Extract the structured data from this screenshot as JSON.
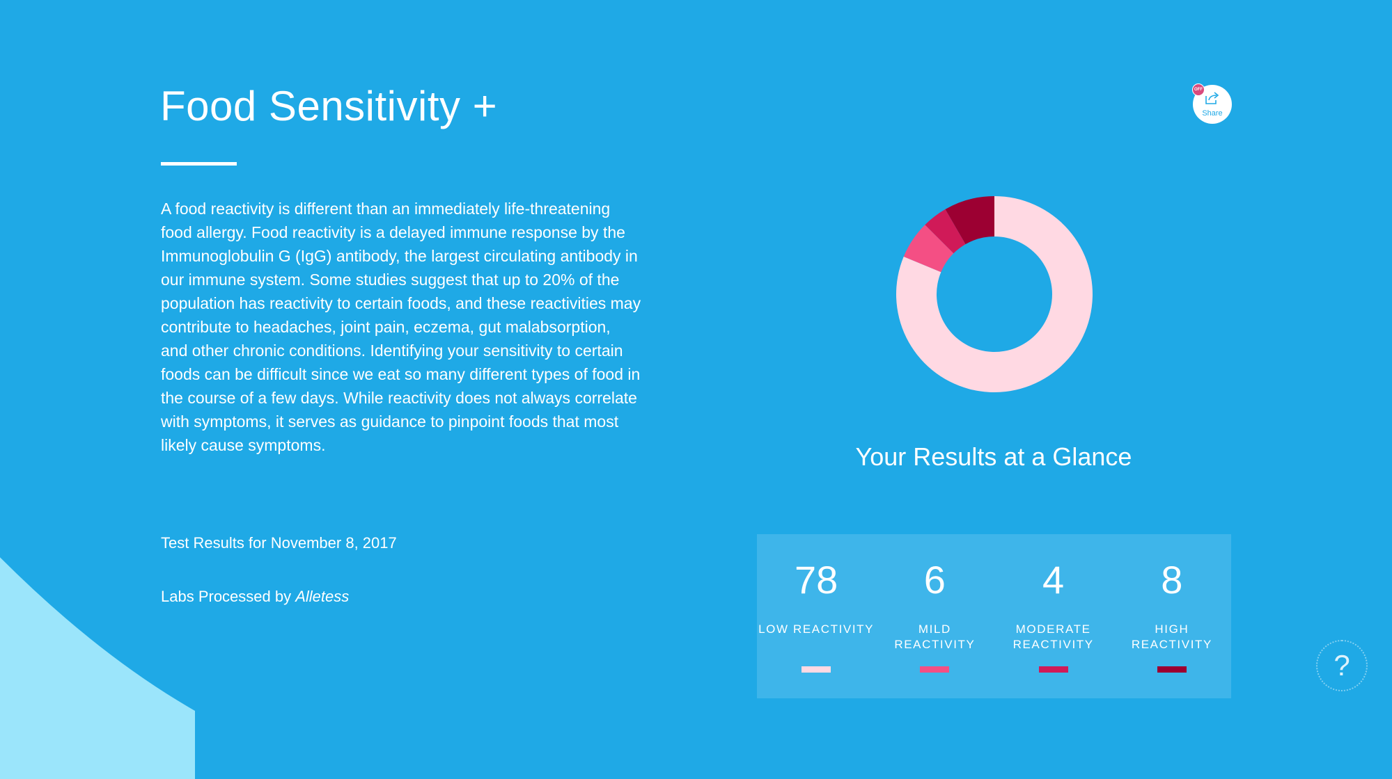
{
  "page": {
    "title": "Food Sensitivity +",
    "description": "A food reactivity is different than an immediately life-threatening food allergy. Food reactivity is a delayed immune response by the Immunoglobulin G (IgG) antibody, the largest circulating antibody in our immune system. Some studies suggest that up to 20% of the population has reactivity to certain foods, and these reactivities may contribute to headaches, joint pain, eczema, gut malabsorption, and other chronic conditions. Identifying your sensitivity to certain foods can be difficult since we eat so many different types of food in the course of a few days. While reactivity does not always correlate with symptoms, it serves as guidance to pinpoint foods that most likely cause symptoms.",
    "results_prefix": "Test Results for",
    "results_date": "November 8, 2017",
    "labs_prefix": "Labs Processed by",
    "labs_vendor": "Alletess"
  },
  "share": {
    "label": "Share",
    "badge": "OFF",
    "icon": "share-icon"
  },
  "summary": {
    "title": "Your Results at a Glance",
    "stats": [
      {
        "count": "78",
        "label_line1": "LOW REACTIVITY",
        "label_line2": "",
        "color": "#ffd9e3"
      },
      {
        "count": "6",
        "label_line1": "MILD",
        "label_line2": "REACTIVITY",
        "color": "#f44f84"
      },
      {
        "count": "4",
        "label_line1": "MODERATE",
        "label_line2": "REACTIVITY",
        "color": "#d01a58"
      },
      {
        "count": "8",
        "label_line1": "HIGH",
        "label_line2": "REACTIVITY",
        "color": "#9c0032"
      }
    ]
  },
  "help": {
    "label": "?",
    "icon": "help-icon"
  },
  "colors": {
    "background": "#1fa9e6",
    "panel": "#3eb5ea",
    "corner": "#9be5fb"
  },
  "chart_data": {
    "type": "pie",
    "categories": [
      "LOW REACTIVITY",
      "MILD REACTIVITY",
      "MODERATE REACTIVITY",
      "HIGH REACTIVITY"
    ],
    "values": [
      78,
      6,
      4,
      8
    ],
    "colors": [
      "#ffd9e3",
      "#f44f84",
      "#d01a58",
      "#9c0032"
    ],
    "title": "",
    "donut": true
  }
}
